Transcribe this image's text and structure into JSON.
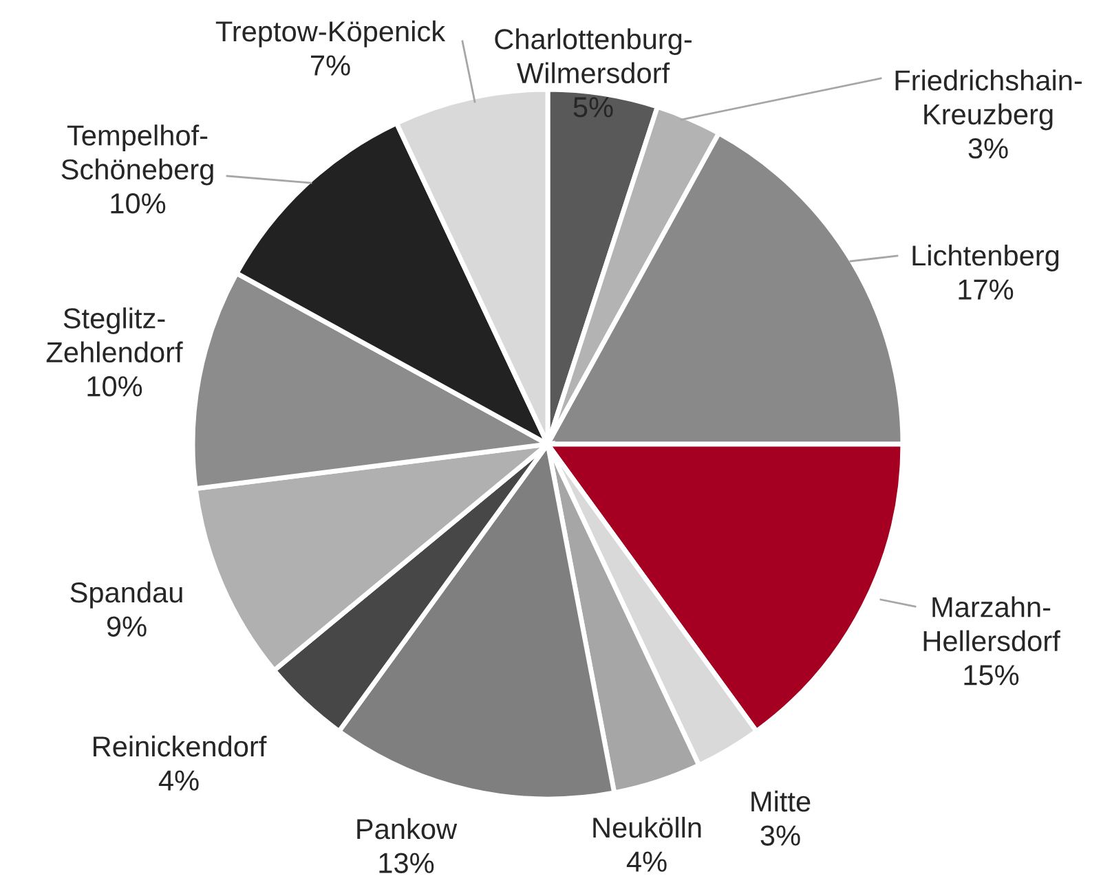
{
  "chart_data": {
    "type": "pie",
    "categories": [
      "Charlottenburg-Wilmersdorf",
      "Friedrichshain-Kreuzberg",
      "Lichtenberg",
      "Marzahn-Hellersdorf",
      "Mitte",
      "Neukölln",
      "Pankow",
      "Reinickendorf",
      "Spandau",
      "Steglitz-Zehlendorf",
      "Tempelhof-Schöneberg",
      "Treptow-Köpenick"
    ],
    "values": [
      5,
      3,
      17,
      15,
      3,
      4,
      13,
      4,
      9,
      10,
      10,
      7
    ],
    "colors": [
      "#595959",
      "#b3b3b3",
      "#898989",
      "#a50021",
      "#d9d9d9",
      "#a6a6a6",
      "#7f7f7f",
      "#474747",
      "#b0b0b0",
      "#8c8c8c",
      "#222222",
      "#d9d9d9"
    ],
    "value_labels": [
      "5%",
      "3%",
      "17%",
      "15%",
      "3%",
      "4%",
      "13%",
      "4%",
      "9%",
      "10%",
      "10%",
      "7%"
    ],
    "legend": false
  }
}
